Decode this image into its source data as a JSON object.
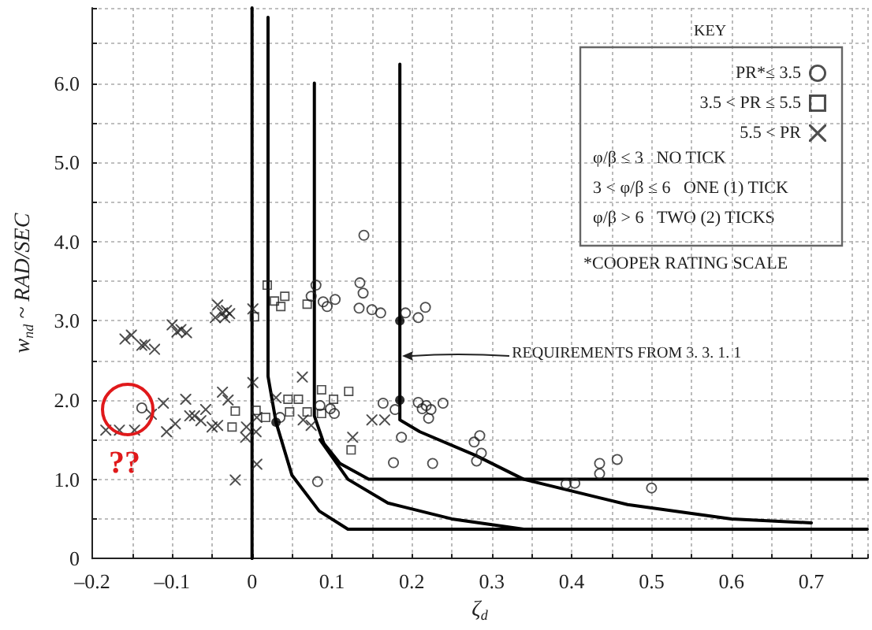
{
  "chart_data": {
    "type": "scatter",
    "xlabel": "ζ$_{d}$",
    "ylabel": "w$_{nd}$ ~ RAD/SEC",
    "legend_title": "KEY",
    "xlim": [
      -0.2,
      0.77
    ],
    "ylim": [
      0,
      6.95
    ],
    "xticks": [
      {
        "value": -0.2,
        "label": "–0.2"
      },
      {
        "value": -0.15,
        "label": null
      },
      {
        "value": -0.1,
        "label": "–0.1"
      },
      {
        "value": -0.05,
        "label": null
      },
      {
        "value": 0,
        "label": "0"
      },
      {
        "value": 0.05,
        "label": null
      },
      {
        "value": 0.1,
        "label": "0.1"
      },
      {
        "value": 0.15,
        "label": null
      },
      {
        "value": 0.2,
        "label": "0.2"
      },
      {
        "value": 0.25,
        "label": null
      },
      {
        "value": 0.3,
        "label": "0.3"
      },
      {
        "value": 0.35,
        "label": null
      },
      {
        "value": 0.4,
        "label": "0.4"
      },
      {
        "value": 0.45,
        "label": null
      },
      {
        "value": 0.5,
        "label": "0.5"
      },
      {
        "value": 0.55,
        "label": null
      },
      {
        "value": 0.6,
        "label": "0.6"
      },
      {
        "value": 0.65,
        "label": null
      },
      {
        "value": 0.7,
        "label": "0.7"
      },
      {
        "value": 0.75,
        "label": null
      }
    ],
    "yticks": [
      {
        "value": 0,
        "label": "0"
      },
      {
        "value": 0.5,
        "label": null
      },
      {
        "value": 1,
        "label": "1.0"
      },
      {
        "value": 1.5,
        "label": null
      },
      {
        "value": 2,
        "label": "2.0"
      },
      {
        "value": 2.5,
        "label": null
      },
      {
        "value": 3,
        "label": "3.0"
      },
      {
        "value": 3.5,
        "label": null
      },
      {
        "value": 4,
        "label": "4.0"
      },
      {
        "value": 4.5,
        "label": null
      },
      {
        "value": 5,
        "label": "5.0"
      },
      {
        "value": 5.5,
        "label": null
      },
      {
        "value": 6,
        "label": "6.0"
      },
      {
        "value": 6.5,
        "label": null
      }
    ],
    "grid": true,
    "legend": "top right",
    "series": [
      {
        "name": "PR*≤ 3.5",
        "color": "#222222",
        "marker": "circle",
        "x": [
          0.08,
          0.074,
          0.089,
          0.094,
          0.104,
          0.14,
          0.135,
          0.139,
          0.134,
          0.15,
          0.161,
          0.192,
          0.208,
          0.217,
          0.085,
          0.098,
          0.103,
          0.082,
          0.164,
          0.179,
          0.187,
          0.177,
          0.208,
          0.213,
          0.218,
          0.224,
          0.221,
          0.239,
          0.226,
          0.278,
          0.285,
          0.287,
          0.281,
          0.035,
          0.393,
          0.404,
          0.435,
          0.435,
          0.457,
          0.5,
          -0.138
        ],
        "values": [
          3.45,
          3.31,
          3.24,
          3.18,
          3.27,
          4.08,
          3.48,
          3.35,
          3.16,
          3.14,
          3.1,
          3.1,
          3.04,
          3.17,
          1.93,
          1.89,
          1.83,
          0.97,
          1.96,
          1.88,
          1.53,
          1.21,
          1.97,
          1.89,
          1.93,
          1.88,
          1.77,
          1.96,
          1.2,
          1.47,
          1.55,
          1.33,
          1.23,
          1.78,
          0.94,
          0.95,
          1.2,
          1.07,
          1.25,
          0.89,
          1.9
        ]
      },
      {
        "name": "3.5 < PR ≤ 5.5",
        "color": "#222222",
        "marker": "square",
        "x": [
          0.019,
          0.028,
          0.036,
          0.041,
          0.069,
          0.003,
          0.005,
          0.017,
          0.045,
          0.047,
          0.058,
          0.069,
          0.087,
          0.087,
          0.102,
          0.121,
          0.124,
          -0.021,
          -0.025
        ],
        "values": [
          3.45,
          3.25,
          3.18,
          3.31,
          3.21,
          3.05,
          1.87,
          1.78,
          2.01,
          1.85,
          2.01,
          1.85,
          1.83,
          2.13,
          2.01,
          2.11,
          1.37,
          1.86,
          1.66
        ]
      },
      {
        "name": "5.5 < PR",
        "color": "#222222",
        "marker": "cross",
        "x": [
          -0.183,
          -0.166,
          -0.147,
          -0.159,
          -0.151,
          -0.138,
          -0.134,
          -0.122,
          -0.126,
          -0.111,
          -0.107,
          -0.1,
          -0.094,
          -0.089,
          -0.082,
          -0.096,
          -0.083,
          -0.078,
          -0.072,
          -0.064,
          -0.058,
          -0.05,
          -0.043,
          -0.037,
          -0.03,
          -0.043,
          -0.046,
          -0.037,
          -0.032,
          -0.028,
          -0.034,
          -0.021,
          -0.008,
          -0.007,
          0.001,
          0.001,
          0.006,
          0.005,
          0.063,
          0.03,
          0.074,
          0.064,
          0.126,
          0.15,
          0.166,
          0.006
        ],
        "values": [
          1.62,
          1.62,
          1.62,
          2.77,
          2.82,
          2.69,
          2.7,
          2.64,
          1.82,
          1.96,
          1.6,
          2.95,
          2.86,
          2.89,
          2.85,
          1.7,
          2.01,
          1.8,
          1.8,
          1.74,
          1.88,
          1.66,
          1.68,
          2.1,
          2.0,
          3.2,
          3.04,
          3.1,
          3.13,
          3.09,
          3.04,
          0.99,
          1.53,
          1.66,
          2.22,
          3.15,
          1.19,
          1.6,
          2.29,
          2.03,
          1.68,
          1.75,
          1.53,
          1.75,
          1.75,
          1.78
        ]
      },
      {
        "color": "#000000",
        "x": [
          0.185,
          0.185,
          0.03
        ],
        "values": [
          3.0,
          2.0,
          1.72
        ]
      },
      {
        "type": "line",
        "color": "#000000",
        "marker": "none",
        "x": [
          0,
          0
        ],
        "values": [
          0,
          6.95
        ]
      },
      {
        "type": "line",
        "color": "#000000",
        "marker": "none",
        "x": [
          0.02,
          0.02,
          0.03,
          0.05,
          0.084,
          0.12,
          0.77
        ],
        "values": [
          6.83,
          2.3,
          1.72,
          1.05,
          0.6,
          0.37,
          0.37
        ]
      },
      {
        "type": "line",
        "color": "#000000",
        "marker": "none",
        "x": [
          0.078,
          0.078,
          0.09,
          0.11,
          0.146,
          0.77
        ],
        "values": [
          6.0,
          1.8,
          1.45,
          1.2,
          1.0,
          1.0
        ]
      },
      {
        "type": "line",
        "color": "#000000",
        "marker": "none",
        "x": [
          0.085,
          0.12,
          0.17,
          0.25,
          0.34
        ],
        "values": [
          1.5,
          1.0,
          0.7,
          0.5,
          0.37
        ]
      },
      {
        "type": "line",
        "color": "#000000",
        "marker": "none",
        "x": [
          0.185,
          0.185,
          0.21,
          0.28,
          0.34,
          0.47,
          0.6,
          0.7
        ],
        "values": [
          6.24,
          1.75,
          1.6,
          1.3,
          1.0,
          0.68,
          0.5,
          0.45
        ]
      }
    ],
    "annotations": [
      "φ/β ≤ 3   NO TICK",
      "3 < φ/β ≤ 6   ONE (1) TICK",
      "φ/β > 6   TWO (2) TICKS",
      "*COOPER RATING SCALE",
      {
        "text": "REQUIREMENTS FROM 3. 3. 1. 1",
        "x": 0.185,
        "y": 2.55
      },
      "??"
    ]
  }
}
